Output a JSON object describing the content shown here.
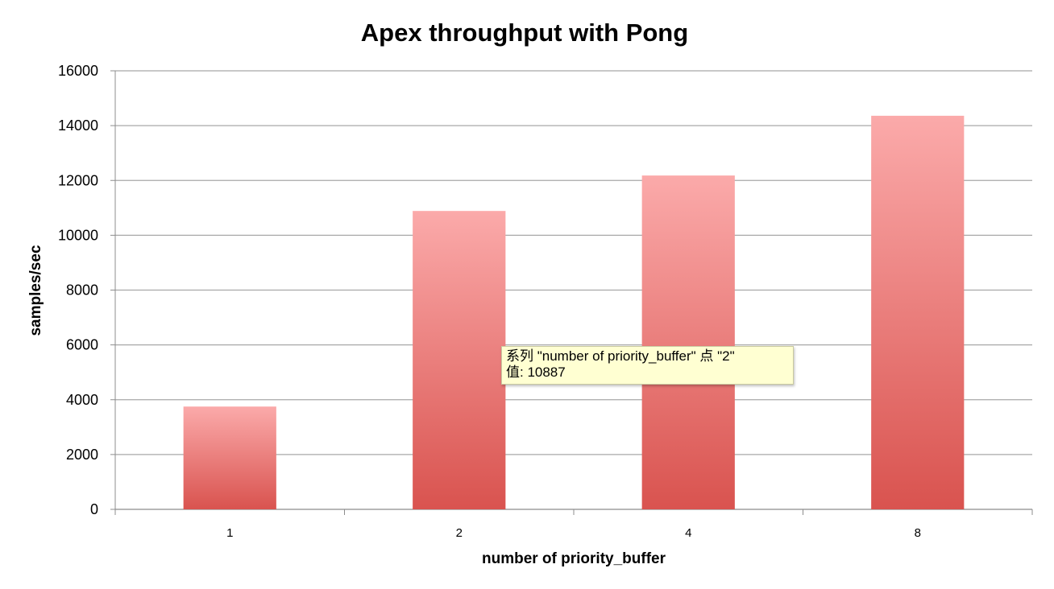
{
  "chart_data": {
    "type": "bar",
    "title": "Apex throughput with Pong",
    "xlabel": "number of priority_buffer",
    "ylabel": "samples/sec",
    "categories": [
      "1",
      "2",
      "4",
      "8"
    ],
    "series": [
      {
        "values": [
          3750,
          10887,
          12180,
          14360
        ]
      }
    ],
    "ylim": [
      0,
      16000
    ],
    "yticks": [
      "0",
      "2000",
      "4000",
      "6000",
      "8000",
      "10000",
      "12000",
      "14000",
      "16000"
    ],
    "grid": true,
    "bar_color_top": "#fbaaaa",
    "bar_color_bottom": "#d9534f"
  },
  "tooltip": {
    "line1": "系列 \"number of priority_buffer\" 点 \"2\"",
    "line2": "值: 10887"
  }
}
